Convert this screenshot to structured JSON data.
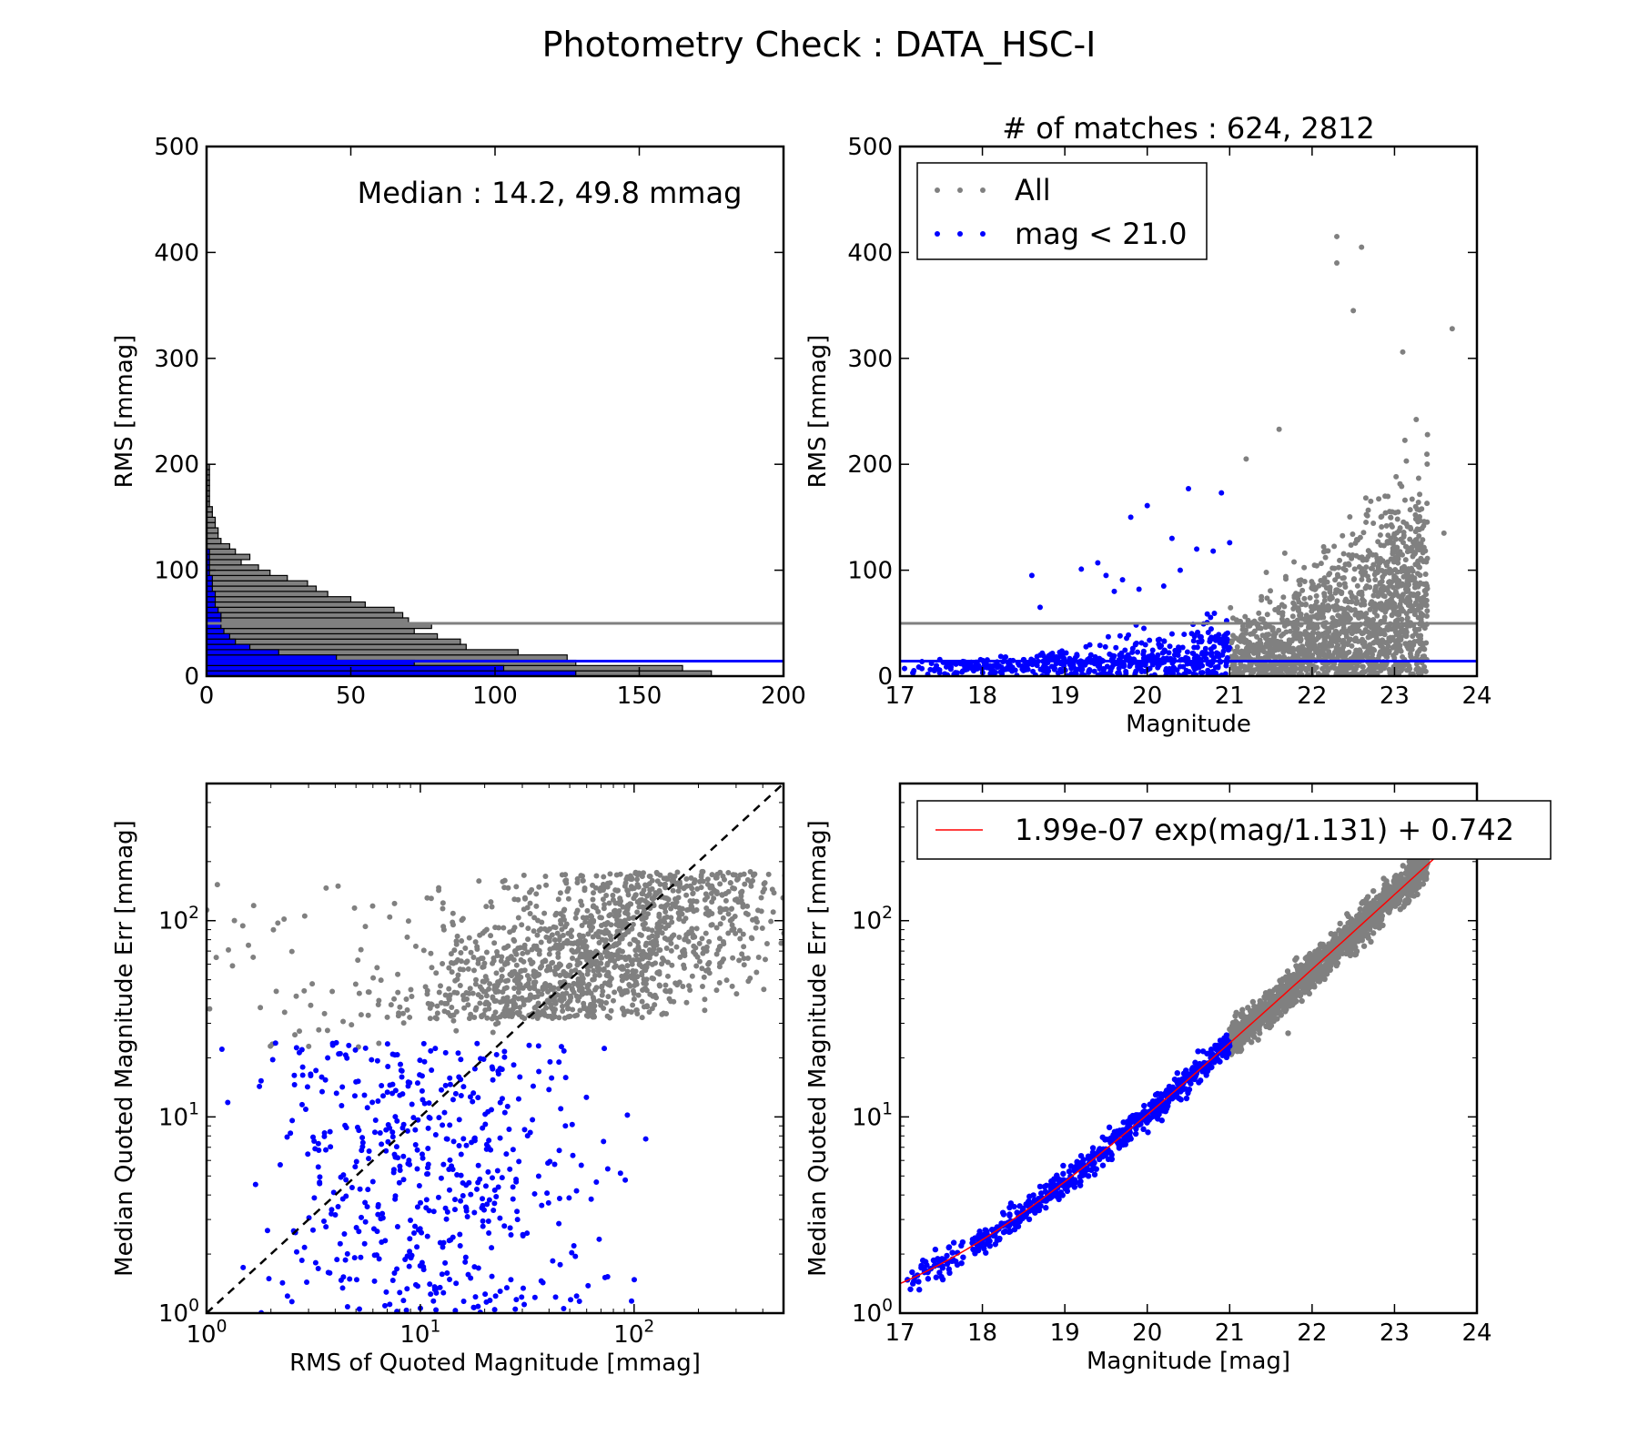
{
  "figure_title": "Photometry Check : DATA_HSC-I",
  "colors": {
    "all": "#808080",
    "bright": "#0000ff",
    "fit": "#ff0000",
    "frame": "#000000"
  },
  "chart_data": [
    {
      "id": "hist",
      "type": "histogram",
      "orientation": "horizontal",
      "ylabel": "RMS [mmag]",
      "xlabel": "",
      "xlim": [
        0,
        200
      ],
      "ylim": [
        0,
        500
      ],
      "xticks": [
        "0",
        "50",
        "100",
        "150",
        "200"
      ],
      "yticks": [
        "0",
        "100",
        "200",
        "300",
        "400",
        "500"
      ],
      "annotation": "Median : 14.2, 49.8 mmag",
      "bin_width": 5,
      "series": [
        {
          "color_key": "all",
          "counts": [
            175,
            165,
            128,
            125,
            108,
            90,
            88,
            80,
            72,
            78,
            70,
            68,
            65,
            55,
            50,
            42,
            38,
            35,
            28,
            22,
            18,
            12,
            15,
            10,
            8,
            5,
            4,
            4,
            3,
            3,
            2,
            2,
            1,
            1,
            1,
            1,
            1,
            1,
            1,
            1
          ]
        },
        {
          "color_key": "bright",
          "counts": [
            128,
            103,
            72,
            45,
            25,
            15,
            10,
            8,
            6,
            5,
            5,
            5,
            4,
            3,
            3,
            3,
            2,
            2,
            2,
            1,
            1,
            1,
            1,
            1
          ]
        }
      ],
      "hlines": [
        {
          "y": 49.8,
          "color_key": "all"
        },
        {
          "y": 14.2,
          "color_key": "bright"
        }
      ]
    },
    {
      "id": "rms_vs_mag",
      "type": "scatter",
      "title": "# of matches : 624, 2812",
      "xlabel": "Magnitude",
      "ylabel": "RMS [mmag]",
      "xlim": [
        17,
        24
      ],
      "ylim": [
        0,
        500
      ],
      "xticks": [
        "17",
        "18",
        "19",
        "20",
        "21",
        "22",
        "23",
        "24"
      ],
      "yticks": [
        "0",
        "100",
        "200",
        "300",
        "400",
        "500"
      ],
      "legend": {
        "placement": "upper-left",
        "entries": [
          {
            "label": "All",
            "color_key": "all"
          },
          {
            "label": "mag < 21.0",
            "color_key": "bright"
          }
        ]
      },
      "hlines": [
        {
          "y": 49.8,
          "color_key": "all"
        },
        {
          "y": 14.2,
          "color_key": "bright"
        }
      ],
      "series": [
        {
          "name": "All",
          "color_key": "all",
          "count": 2812,
          "mag_range": [
            21.0,
            23.4
          ],
          "outliers": [
            [
              22.3,
              415
            ],
            [
              22.3,
              390
            ],
            [
              22.6,
              405
            ],
            [
              22.5,
              345
            ],
            [
              23.7,
              328
            ],
            [
              21.2,
              205
            ],
            [
              21.6,
              233
            ],
            [
              23.4,
              228
            ],
            [
              23.6,
              135
            ],
            [
              23.1,
              306
            ]
          ]
        },
        {
          "name": "mag < 21.0",
          "color_key": "bright",
          "count": 624,
          "mag_range": [
            17.0,
            21.0
          ],
          "outliers": [
            [
              20.5,
              177
            ],
            [
              20.9,
              173
            ],
            [
              20.0,
              161
            ],
            [
              19.8,
              150
            ],
            [
              19.4,
              107
            ],
            [
              19.2,
              101
            ],
            [
              19.5,
              95
            ],
            [
              19.7,
              91
            ],
            [
              18.6,
              95
            ],
            [
              20.3,
              130
            ],
            [
              20.6,
              120
            ],
            [
              20.8,
              118
            ],
            [
              21.0,
              126
            ],
            [
              19.9,
              82
            ],
            [
              19.6,
              80
            ],
            [
              18.7,
              65
            ],
            [
              20.2,
              85
            ],
            [
              20.4,
              100
            ]
          ]
        }
      ]
    },
    {
      "id": "err_vs_rms",
      "type": "scatter",
      "xscale": "log",
      "yscale": "log",
      "xlabel": "RMS of Quoted Magnitude [mmag]",
      "ylabel": "Median Quoted Magnitude Err [mmag]",
      "xlim": [
        1,
        500
      ],
      "ylim": [
        1,
        500
      ],
      "xticks": [
        {
          "base": "10",
          "exp": "0"
        },
        {
          "base": "10",
          "exp": "1"
        },
        {
          "base": "10",
          "exp": "2"
        }
      ],
      "yticks": [
        {
          "base": "10",
          "exp": "0"
        },
        {
          "base": "10",
          "exp": "1"
        },
        {
          "base": "10",
          "exp": "2"
        }
      ],
      "reference_line": {
        "style": "dashed",
        "slope": 1
      },
      "series": [
        {
          "name": "All",
          "color_key": "all",
          "count": 2812
        },
        {
          "name": "mag < 21.0",
          "color_key": "bright",
          "count": 624
        }
      ]
    },
    {
      "id": "err_vs_mag",
      "type": "scatter",
      "yscale": "log",
      "xlabel": "Magnitude [mag]",
      "ylabel": "Median Quoted Magnitude Err [mmag]",
      "xlim": [
        17,
        24
      ],
      "ylim": [
        1,
        500
      ],
      "xticks": [
        "17",
        "18",
        "19",
        "20",
        "21",
        "22",
        "23",
        "24"
      ],
      "yticks": [
        {
          "base": "10",
          "exp": "0"
        },
        {
          "base": "10",
          "exp": "1"
        },
        {
          "base": "10",
          "exp": "2"
        }
      ],
      "fit": {
        "a": 1.99e-07,
        "scale": 1.131,
        "offset": 0.742,
        "color_key": "fit"
      },
      "legend": {
        "placement": "upper-left",
        "entries": [
          {
            "label": "1.99e-07 exp(mag/1.131) + 0.742",
            "color_key": "fit"
          }
        ]
      },
      "series": [
        {
          "name": "All",
          "color_key": "all",
          "count": 2812,
          "mag_range": [
            21.0,
            23.4
          ]
        },
        {
          "name": "mag < 21.0",
          "color_key": "bright",
          "count": 624,
          "mag_range": [
            17.0,
            21.0
          ]
        }
      ]
    }
  ]
}
